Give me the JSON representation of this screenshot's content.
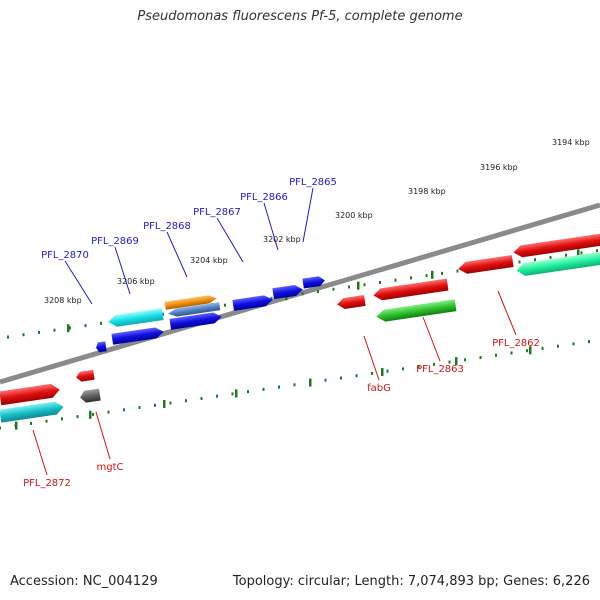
{
  "title": "Pseudomonas fluorescens Pf-5, complete genome",
  "footer": {
    "accession": "Accession: NC_004129",
    "summary": "Topology: circular; Length: 7,074,893 bp; Genes: 6,226"
  },
  "scale_labels": [
    "3194 kbp",
    "3196 kbp",
    "3198 kbp",
    "3200 kbp",
    "3202 kbp",
    "3204 kbp",
    "3206 kbp",
    "3208 kbp"
  ],
  "gene_labels_top": [
    "PFL_2870",
    "PFL_2869",
    "PFL_2868",
    "PFL_2867",
    "PFL_2866",
    "PFL_2865"
  ],
  "gene_labels_bottom": [
    "PFL_2872",
    "mgtC",
    "fabG",
    "PFL_2863",
    "PFL_2862"
  ],
  "colors": {
    "backbone": "#8a8a8a",
    "tick": "#1f7a1f",
    "top_label": "#1c1ccf",
    "bottom_label": "#d11414",
    "red": "#e01010",
    "blue": "#1010e0",
    "cyan": "#18e0e8",
    "teal": "#18c0c8",
    "orange": "#f09010",
    "steel": "#5080c0",
    "green": "#30c030",
    "mint": "#20f0a0",
    "gray": "#606060"
  }
}
